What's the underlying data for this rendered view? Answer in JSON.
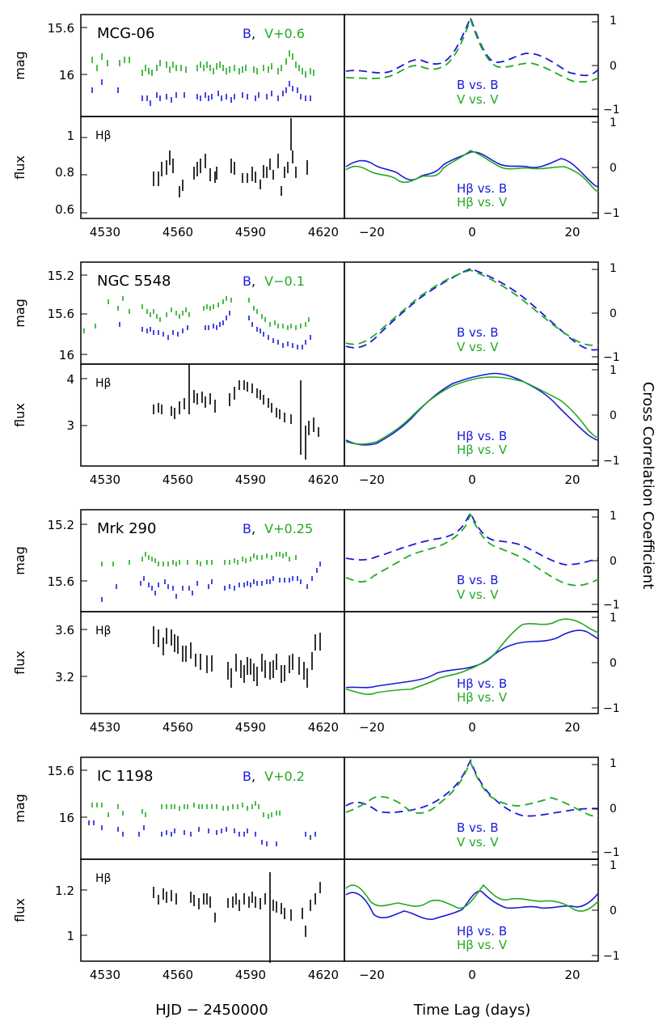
{
  "figure": {
    "xlabel_left": "HJD − 2450000",
    "xlabel_right": "Time Lag (days)",
    "ylabel_right": "Cross Correlation Coefficient",
    "left_xticks": [
      "4530",
      "4560",
      "4590",
      "4620"
    ],
    "right_xticks": [
      "−20",
      "0",
      "20"
    ],
    "colors": {
      "B": "#1a1adb",
      "V": "#22aa22",
      "Hbeta": "#000000",
      "frame": "#000000"
    }
  },
  "chart_data": [
    {
      "type": "scatter",
      "object": "MCG-06",
      "mag_label": "mag",
      "flux_label": "flux",
      "legend_B": "B",
      "legend_sep": ",",
      "legend_V": "V+0.6",
      "hbeta_label": "Hβ",
      "mag_ticks": [
        "15.6",
        "16"
      ],
      "flux_ticks": [
        "0.6",
        "0.8",
        "1"
      ],
      "ccf_legend_mag": [
        "B vs. B",
        "V vs. V"
      ],
      "ccf_legend_flux": [
        "Hβ vs. B",
        "Hβ vs. V"
      ],
      "ccf_ticks": [
        "1",
        "0",
        "−1"
      ]
    },
    {
      "type": "scatter",
      "object": "NGC 5548",
      "mag_label": "mag",
      "flux_label": "flux",
      "legend_B": "B",
      "legend_sep": ",",
      "legend_V": "V−0.1",
      "hbeta_label": "Hβ",
      "mag_ticks": [
        "15.2",
        "15.6",
        "16"
      ],
      "flux_ticks": [
        "3",
        "4"
      ],
      "ccf_legend_mag": [
        "B vs. B",
        "V vs. V"
      ],
      "ccf_legend_flux": [
        "Hβ vs. B",
        "Hβ vs. V"
      ],
      "ccf_ticks": [
        "1",
        "0",
        "−1"
      ]
    },
    {
      "type": "scatter",
      "object": "Mrk 290",
      "mag_label": "mag",
      "flux_label": "flux",
      "legend_B": "B",
      "legend_sep": ",",
      "legend_V": "V+0.25",
      "hbeta_label": "Hβ",
      "mag_ticks": [
        "15.2",
        "15.6"
      ],
      "flux_ticks": [
        "3.2",
        "3.6"
      ],
      "ccf_legend_mag": [
        "B vs. B",
        "V vs. V"
      ],
      "ccf_legend_flux": [
        "Hβ vs. B",
        "Hβ vs. V"
      ],
      "ccf_ticks": [
        "1",
        "0",
        "−1"
      ]
    },
    {
      "type": "scatter",
      "object": "IC 1198",
      "mag_label": "mag",
      "flux_label": "flux",
      "legend_B": "B",
      "legend_sep": ",",
      "legend_V": "V+0.2",
      "hbeta_label": "Hβ",
      "mag_ticks": [
        "15.6",
        "16"
      ],
      "flux_ticks": [
        "1",
        "1.2"
      ],
      "ccf_legend_mag": [
        "B vs. B",
        "V vs. V"
      ],
      "ccf_legend_flux": [
        "Hβ vs. B",
        "Hβ vs. V"
      ],
      "ccf_ticks": [
        "1",
        "0",
        "−1"
      ]
    }
  ]
}
